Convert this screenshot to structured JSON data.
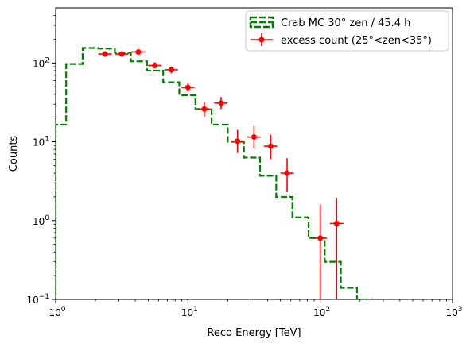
{
  "chart_data": {
    "type": "histogram-errorbar",
    "xlabel": "Reco Energy [TeV]",
    "ylabel": "Counts",
    "x_scale": "log",
    "y_scale": "log",
    "xlim": [
      1,
      1000
    ],
    "ylim": [
      0.1,
      500
    ],
    "x_ticks": [
      {
        "value": 1,
        "base": "10",
        "exp": "0"
      },
      {
        "value": 10,
        "base": "10",
        "exp": "1"
      },
      {
        "value": 100,
        "base": "10",
        "exp": "2"
      },
      {
        "value": 1000,
        "base": "10",
        "exp": "3"
      }
    ],
    "y_ticks": [
      {
        "value": 0.1,
        "base": "10",
        "exp": "−1"
      },
      {
        "value": 1,
        "base": "10",
        "exp": "0"
      },
      {
        "value": 10,
        "base": "10",
        "exp": "1"
      },
      {
        "value": 100,
        "base": "10",
        "exp": "2"
      }
    ],
    "grid": false,
    "legend_position": "top-right",
    "series": [
      {
        "name": "Crab MC 30° zen / 45.4 h",
        "kind": "step",
        "style": "dashed",
        "color": "#008000",
        "bin_edges": [
          1.0,
          1.2,
          1.6,
          2.1,
          2.8,
          3.7,
          4.9,
          6.5,
          8.6,
          11.4,
          15.1,
          20.0,
          26.5,
          35.1,
          46.5,
          61.6,
          81.6,
          108.1,
          143.2,
          189.7,
          251.3
        ],
        "values": [
          16.5,
          97,
          155,
          152,
          135,
          105,
          80,
          57,
          39,
          26,
          16.5,
          10,
          6.3,
          3.7,
          2.0,
          1.1,
          0.6,
          0.3,
          0.14,
          0.1
        ]
      },
      {
        "name": "excess count (25°<zen<35°)",
        "kind": "errorbar",
        "color": "#ff0000",
        "points": [
          {
            "x": 2.36,
            "y": 130,
            "xerr": [
              2.1,
              2.65
            ],
            "yerr": [
              120,
              140
            ]
          },
          {
            "x": 3.16,
            "y": 130,
            "xerr": [
              2.8,
              3.55
            ],
            "yerr": [
              120,
              140
            ]
          },
          {
            "x": 4.22,
            "y": 138,
            "xerr": [
              3.75,
              4.75
            ],
            "yerr": [
              128,
              148
            ]
          },
          {
            "x": 5.62,
            "y": 93,
            "xerr": [
              5.0,
              6.3
            ],
            "yerr": [
              85,
              102
            ]
          },
          {
            "x": 7.5,
            "y": 82,
            "xerr": [
              6.65,
              8.4
            ],
            "yerr": [
              74,
              90
            ]
          },
          {
            "x": 10.0,
            "y": 49,
            "xerr": [
              8.9,
              11.2
            ],
            "yerr": [
              43,
              56
            ]
          },
          {
            "x": 13.3,
            "y": 26,
            "xerr": [
              11.8,
              14.9
            ],
            "yerr": [
              21,
              32
            ]
          },
          {
            "x": 17.8,
            "y": 31,
            "xerr": [
              15.8,
              19.9
            ],
            "yerr": [
              26,
              37
            ]
          },
          {
            "x": 23.7,
            "y": 10.2,
            "xerr": [
              21.1,
              26.6
            ],
            "yerr": [
              7.2,
              14.2
            ]
          },
          {
            "x": 31.6,
            "y": 11.5,
            "xerr": [
              28.2,
              35.5
            ],
            "yerr": [
              8.2,
              15.8
            ]
          },
          {
            "x": 42.2,
            "y": 8.8,
            "xerr": [
              37.5,
              47.3
            ],
            "yerr": [
              6.0,
              12.3
            ]
          },
          {
            "x": 56.2,
            "y": 4.0,
            "xerr": [
              50.1,
              63.1
            ],
            "yerr": [
              2.3,
              6.2
            ]
          },
          {
            "x": 100.0,
            "y": 0.6,
            "xerr": [
              89.1,
              112.2
            ],
            "yerr": [
              0.05,
              1.6
            ]
          },
          {
            "x": 133.0,
            "y": 0.92,
            "xerr": [
              118.5,
              149.6
            ],
            "yerr": [
              0.05,
              1.95
            ]
          }
        ]
      }
    ]
  }
}
